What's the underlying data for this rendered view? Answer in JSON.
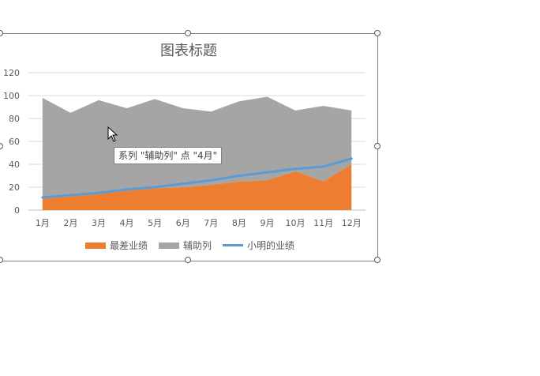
{
  "chart_data": {
    "type": "area",
    "title": "图表标题",
    "categories": [
      "1月",
      "2月",
      "3月",
      "4月",
      "5月",
      "6月",
      "7月",
      "8月",
      "9月",
      "10月",
      "11月",
      "12月"
    ],
    "ylim": [
      0,
      120
    ],
    "yticks": [
      0,
      20,
      40,
      60,
      80,
      100,
      120
    ],
    "grid": true,
    "legend_position": "bottom",
    "series": [
      {
        "name": "最差业绩",
        "kind": "stacked-area",
        "color": "#ed7d31",
        "values": [
          10,
          12,
          14,
          17,
          19,
          20,
          22,
          25,
          26,
          34,
          25,
          40
        ]
      },
      {
        "name": "辅助列",
        "kind": "stacked-area",
        "color": "#a5a5a5",
        "values": [
          88,
          73,
          82,
          72,
          78,
          69,
          64,
          70,
          73,
          53,
          66,
          47
        ]
      },
      {
        "name": "小明的业绩",
        "kind": "line",
        "color": "#5b9bd5",
        "values": [
          11,
          13,
          15,
          18,
          20,
          23,
          26,
          30,
          33,
          36,
          38,
          45
        ]
      }
    ]
  },
  "tooltip": "系列 \"辅助列\" 点 \"4月\""
}
